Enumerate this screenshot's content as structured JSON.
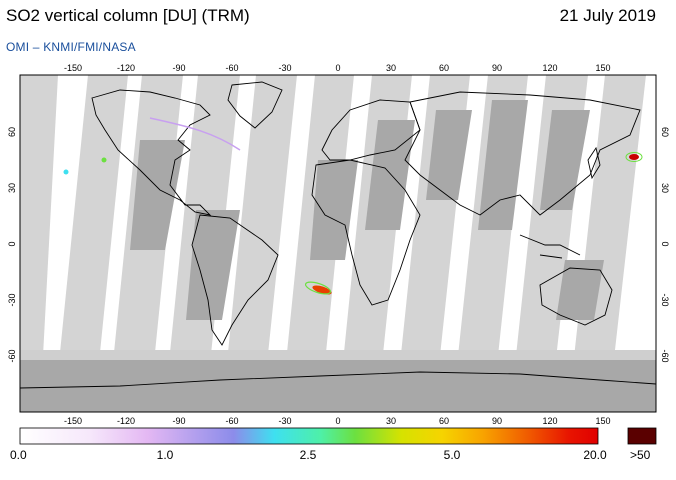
{
  "title": "SO2 vertical column [DU] (TRM)",
  "date": "21 July 2019",
  "credit": "OMI  –  KNMI/FMI/NASA",
  "lon_ticks": [
    "-150",
    "-120",
    "-90",
    "-60",
    "-30",
    "0",
    "30",
    "60",
    "90",
    "120",
    "150"
  ],
  "lat_ticks": [
    "60",
    "30",
    "0",
    "-30",
    "-60"
  ],
  "colorbar": {
    "labels": [
      "0.0",
      "1.0",
      "2.5",
      "5.0",
      "20.0"
    ],
    "overflow_label": ">50",
    "overflow_color": "#5a0000"
  },
  "colors": {
    "ocean_swath": "#d4d4d4",
    "land_swath": "#a8a8a8",
    "title_text": "#000000",
    "credit_text": "#1a4f9c"
  }
}
